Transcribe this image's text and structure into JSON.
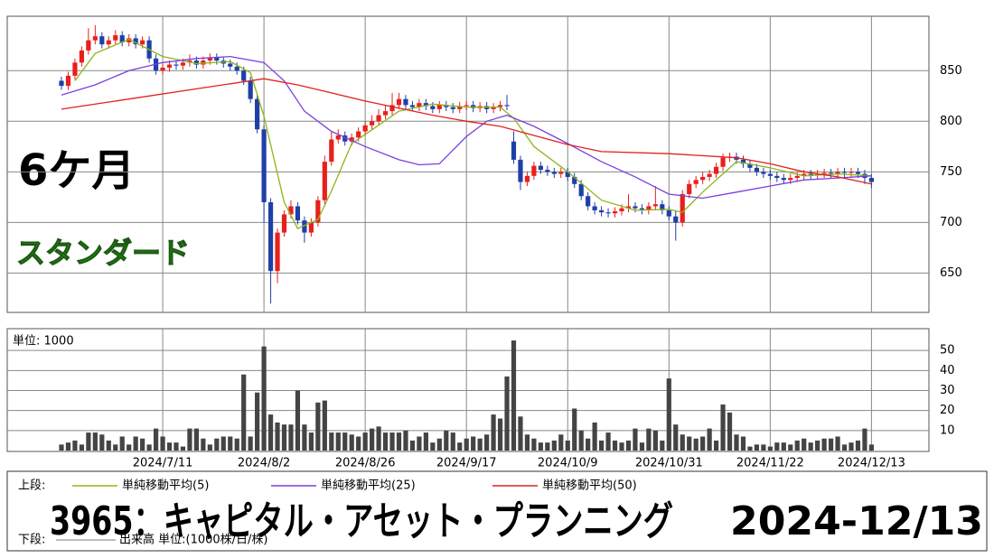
{
  "chart_data": [
    {
      "type": "candlestick",
      "categories": [
        null,
        null,
        null,
        null,
        null,
        null,
        null,
        null,
        null,
        null,
        null,
        null,
        null,
        null,
        null,
        "2024/7/11",
        null,
        null,
        null,
        null,
        null,
        null,
        null,
        null,
        null,
        null,
        null,
        null,
        null,
        null,
        "2024/8/2",
        null,
        null,
        null,
        null,
        null,
        null,
        null,
        null,
        null,
        null,
        null,
        null,
        null,
        null,
        "2024/8/26",
        null,
        null,
        null,
        null,
        null,
        null,
        null,
        null,
        null,
        null,
        null,
        null,
        null,
        null,
        "2024/9/17",
        null,
        null,
        null,
        null,
        null,
        null,
        null,
        null,
        null,
        null,
        null,
        null,
        null,
        null,
        "2024/10/9",
        null,
        null,
        null,
        null,
        null,
        null,
        null,
        null,
        null,
        null,
        null,
        null,
        null,
        null,
        "2024/10/31",
        null,
        null,
        null,
        null,
        null,
        null,
        null,
        null,
        null,
        null,
        null,
        null,
        null,
        null,
        "2024/11/22",
        null,
        null,
        null,
        null,
        null,
        null,
        null,
        null,
        null,
        null,
        null,
        null,
        null,
        null,
        "2024/12/13"
      ],
      "open": [
        840,
        835,
        845,
        858,
        870,
        880,
        884,
        876,
        880,
        885,
        878,
        882,
        876,
        880,
        862,
        850,
        853,
        856,
        855,
        858,
        860,
        856,
        860,
        863,
        860,
        857,
        854,
        850,
        840,
        822,
        792,
        720,
        652,
        690,
        708,
        716,
        702,
        690,
        700,
        722,
        760,
        782,
        786,
        780,
        784,
        790,
        796,
        800,
        806,
        810,
        816,
        822,
        816,
        814,
        818,
        815,
        812,
        816,
        814,
        812,
        815,
        816,
        813,
        815,
        812,
        814,
        816,
        780,
        762,
        740,
        746,
        756,
        752,
        750,
        748,
        750,
        745,
        738,
        726,
        716,
        712,
        710,
        709,
        711,
        714,
        716,
        714,
        712,
        716,
        718,
        712,
        706,
        700,
        728,
        738,
        742,
        745,
        748,
        755,
        764,
        765,
        762,
        758,
        754,
        750,
        748,
        746,
        744,
        742,
        744,
        746,
        748,
        747,
        748,
        749,
        748,
        750,
        749,
        750,
        748,
        744
      ],
      "high": [
        844,
        849,
        862,
        874,
        892,
        895,
        888,
        884,
        890,
        889,
        886,
        886,
        884,
        884,
        866,
        857,
        860,
        860,
        862,
        866,
        864,
        864,
        867,
        867,
        864,
        861,
        858,
        854,
        844,
        826,
        796,
        724,
        694,
        712,
        722,
        720,
        706,
        704,
        726,
        766,
        790,
        792,
        790,
        788,
        794,
        800,
        806,
        812,
        816,
        828,
        828,
        826,
        820,
        822,
        822,
        819,
        820,
        820,
        818,
        819,
        820,
        820,
        819,
        819,
        818,
        820,
        826,
        790,
        766,
        750,
        760,
        760,
        756,
        754,
        754,
        754,
        749,
        742,
        730,
        720,
        716,
        714,
        715,
        718,
        728,
        720,
        718,
        720,
        736,
        722,
        716,
        712,
        732,
        742,
        746,
        750,
        752,
        759,
        768,
        769,
        769,
        766,
        762,
        758,
        754,
        752,
        750,
        748,
        748,
        750,
        752,
        752,
        752,
        753,
        753,
        754,
        754,
        754,
        754,
        752,
        748
      ],
      "low": [
        831,
        831,
        841,
        854,
        866,
        876,
        872,
        872,
        876,
        874,
        874,
        872,
        872,
        858,
        846,
        846,
        849,
        851,
        851,
        854,
        852,
        852,
        856,
        856,
        853,
        850,
        846,
        836,
        818,
        788,
        700,
        620,
        640,
        686,
        704,
        698,
        680,
        686,
        696,
        718,
        756,
        778,
        776,
        776,
        780,
        786,
        792,
        796,
        802,
        806,
        812,
        812,
        810,
        810,
        811,
        808,
        808,
        810,
        808,
        808,
        811,
        809,
        809,
        808,
        808,
        810,
        811,
        758,
        732,
        736,
        742,
        748,
        746,
        744,
        744,
        741,
        734,
        722,
        712,
        708,
        706,
        705,
        705,
        707,
        710,
        710,
        708,
        708,
        712,
        708,
        702,
        682,
        696,
        724,
        734,
        738,
        741,
        744,
        751,
        760,
        758,
        754,
        750,
        746,
        744,
        742,
        740,
        738,
        738,
        740,
        742,
        743,
        743,
        744,
        744,
        744,
        745,
        745,
        744,
        738,
        734
      ],
      "close": [
        835,
        845,
        858,
        870,
        880,
        884,
        876,
        880,
        885,
        878,
        882,
        876,
        880,
        862,
        850,
        853,
        856,
        855,
        858,
        860,
        856,
        860,
        863,
        860,
        857,
        854,
        850,
        840,
        822,
        792,
        720,
        652,
        690,
        708,
        716,
        702,
        690,
        700,
        722,
        760,
        782,
        786,
        780,
        784,
        790,
        796,
        800,
        806,
        810,
        816,
        822,
        816,
        814,
        818,
        815,
        812,
        816,
        814,
        812,
        815,
        816,
        813,
        815,
        812,
        814,
        816,
        815,
        762,
        740,
        746,
        756,
        752,
        750,
        748,
        750,
        745,
        738,
        726,
        716,
        712,
        710,
        709,
        711,
        714,
        716,
        714,
        712,
        716,
        718,
        712,
        706,
        700,
        728,
        738,
        742,
        745,
        748,
        755,
        764,
        765,
        762,
        758,
        754,
        750,
        748,
        746,
        744,
        742,
        744,
        746,
        748,
        747,
        748,
        749,
        748,
        750,
        749,
        750,
        748,
        744,
        740
      ],
      "up_color": "#e8201c",
      "down_color": "#1f3fa8",
      "series": [
        {
          "name": "単純移動平均(5)",
          "color": "#8db51a",
          "x": [
            2,
            5,
            10,
            15,
            20,
            25,
            28,
            30,
            33,
            35,
            38,
            40,
            43,
            45,
            50,
            55,
            60,
            65,
            67,
            70,
            75,
            80,
            85,
            90,
            92,
            95,
            100,
            105,
            110,
            115,
            120
          ],
          "values": [
            840,
            867,
            881,
            864,
            857,
            859,
            848,
            805,
            720,
            694,
            703,
            731,
            778,
            787,
            810,
            817,
            814,
            814,
            803,
            775,
            750,
            722,
            712,
            713,
            710,
            730,
            760,
            754,
            746,
            748,
            746
          ]
        },
        {
          "name": "単純移動平均(25)",
          "color": "#7a3fe0",
          "x": [
            0,
            5,
            10,
            15,
            20,
            25,
            30,
            33,
            36,
            40,
            45,
            50,
            53,
            56,
            60,
            63,
            66,
            70,
            75,
            80,
            85,
            90,
            95,
            100,
            105,
            110,
            115,
            120
          ],
          "values": [
            826,
            836,
            850,
            858,
            862,
            864,
            858,
            840,
            810,
            790,
            775,
            762,
            757,
            758,
            785,
            800,
            806,
            795,
            778,
            760,
            745,
            728,
            724,
            730,
            736,
            742,
            744,
            746
          ]
        },
        {
          "name": "単純移動平均(50)",
          "color": "#e02020",
          "x": [
            0,
            10,
            20,
            30,
            35,
            40,
            45,
            50,
            55,
            60,
            65,
            70,
            75,
            80,
            90,
            100,
            105,
            110,
            115,
            120
          ],
          "values": [
            812,
            822,
            832,
            842,
            836,
            828,
            820,
            813,
            806,
            800,
            795,
            786,
            777,
            770,
            768,
            764,
            758,
            750,
            745,
            738
          ]
        }
      ],
      "ylim": [
        612,
        902
      ],
      "yticks": [
        650,
        700,
        750,
        800,
        850
      ],
      "grid": true
    },
    {
      "type": "bar",
      "title": "単位: 1000",
      "color": "#444444",
      "values": [
        3,
        4,
        5,
        3,
        9,
        9,
        8,
        5,
        3,
        7,
        3,
        7,
        6,
        3,
        11,
        7,
        4,
        4,
        2,
        11,
        11,
        6,
        3,
        6,
        7,
        7,
        6,
        38,
        7,
        29,
        52,
        18,
        14,
        13,
        13,
        30,
        13,
        9,
        24,
        25,
        9,
        9,
        9,
        8,
        7,
        9,
        11,
        12,
        9,
        9,
        9,
        10,
        5,
        7,
        9,
        4,
        6,
        10,
        9,
        4,
        6,
        7,
        6,
        8,
        18,
        16,
        37,
        55,
        17,
        8,
        6,
        4,
        4,
        5,
        8,
        5,
        21,
        10,
        6,
        14,
        5,
        9,
        5,
        4,
        5,
        11,
        4,
        11,
        10,
        5,
        36,
        13,
        8,
        7,
        6,
        7,
        11,
        5,
        23,
        19,
        8,
        7,
        2,
        3,
        3,
        2,
        4,
        4,
        3,
        5,
        6,
        4,
        5,
        6,
        6,
        7,
        3,
        4,
        5,
        11,
        3
      ],
      "ylim": [
        0,
        60
      ],
      "yticks": [
        10,
        20,
        30,
        40,
        50
      ],
      "grid": true
    }
  ],
  "period": "6ケ月",
  "market": "スタンダード",
  "legend": {
    "upper_label": "上段:",
    "lower_label": "下段:",
    "lower_text": "出来高 単位:(1000株/日/株)"
  },
  "header": {
    "title": "3965：キャピタル・アセット・プランニング",
    "date": "2024-12/13"
  }
}
